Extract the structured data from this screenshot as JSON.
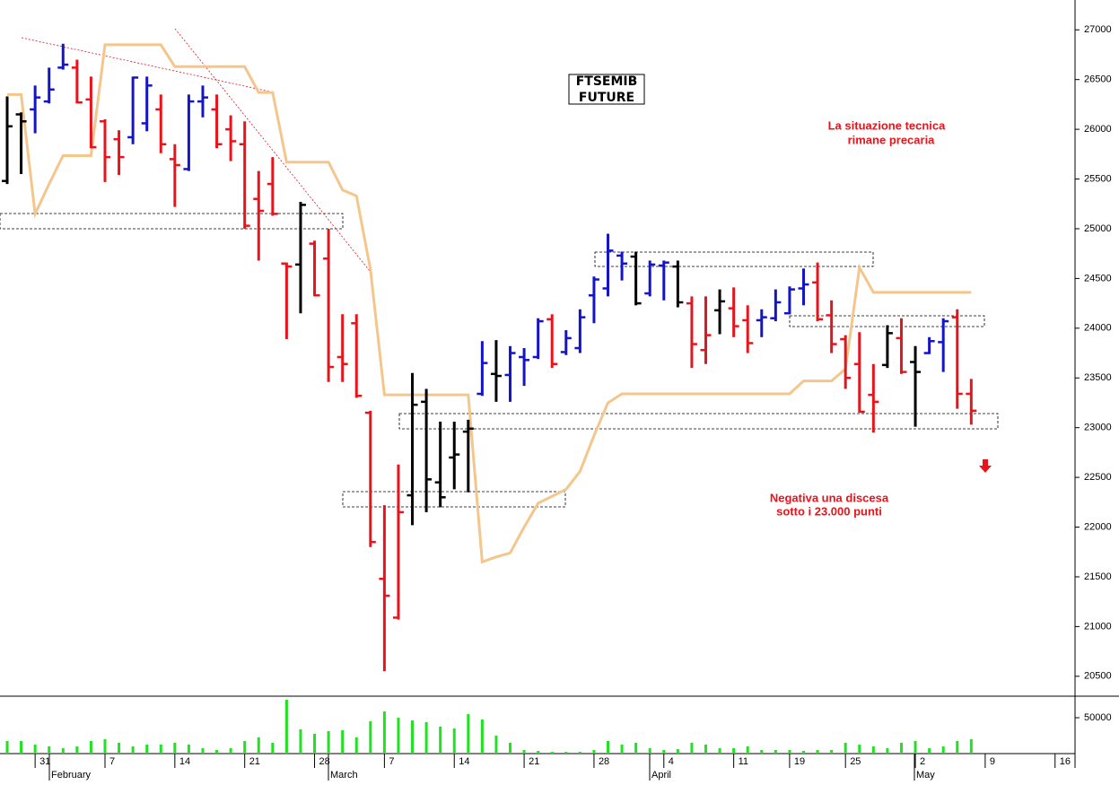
{
  "chart_data": {
    "type": "ohlc",
    "title": [
      "FTSEMIB",
      "FUTURE"
    ],
    "annotations": [
      {
        "lines": [
          "La situazione tecnica",
          "rimane precaria"
        ]
      },
      {
        "lines": [
          "Negativa una discesa",
          "sotto i 23.000 punti"
        ]
      }
    ],
    "months": [
      "February",
      "March",
      "April",
      "May"
    ],
    "categories": [
      null,
      null,
      "31",
      null,
      null,
      null,
      null,
      "7",
      null,
      null,
      null,
      null,
      "14",
      null,
      null,
      null,
      null,
      "21",
      null,
      null,
      null,
      null,
      "28",
      null,
      null,
      null,
      null,
      "7",
      null,
      null,
      null,
      null,
      "14",
      null,
      null,
      null,
      null,
      "21",
      null,
      null,
      null,
      null,
      "28",
      null,
      null,
      null,
      null,
      "4",
      null,
      null,
      null,
      null,
      "11",
      null,
      null,
      null,
      "19",
      null,
      null,
      null,
      "25",
      null,
      null,
      null,
      null,
      "2",
      null,
      null,
      null,
      null,
      "9",
      null,
      null,
      null,
      null,
      "16"
    ],
    "open": [
      25480,
      26150,
      26200,
      26280,
      26620,
      26620,
      26300,
      26080,
      25900,
      25920,
      26060,
      26200,
      25700,
      25600,
      26280,
      26200,
      26000,
      25850,
      25300,
      25450,
      24650,
      24640,
      24850,
      24700,
      23710,
      24050,
      23150,
      21480,
      21090,
      22320,
      23260,
      22450,
      22700,
      22960,
      23340,
      23540,
      23530,
      23710,
      23710,
      24090,
      23760,
      23800,
      24330,
      24400,
      24730,
      24720,
      24350,
      24630,
      24620,
      24250,
      23780,
      24180,
      24200,
      24080,
      24080,
      24100,
      24150,
      24400,
      24460,
      24130,
      23890,
      23640,
      23330,
      23630,
      23900,
      23660,
      23750,
      23860,
      24110,
      23340,
      null,
      null,
      null,
      null,
      null,
      null
    ],
    "high": [
      26330,
      26170,
      26440,
      26620,
      26860,
      26700,
      26530,
      26100,
      25990,
      26530,
      26530,
      26350,
      25850,
      26350,
      26440,
      26350,
      26140,
      26080,
      25580,
      25720,
      24660,
      25270,
      24880,
      25000,
      24140,
      24140,
      23170,
      22220,
      22630,
      23550,
      23390,
      23060,
      23060,
      23080,
      23870,
      23880,
      23820,
      23800,
      24100,
      24140,
      23980,
      24190,
      24520,
      24950,
      24770,
      24770,
      24680,
      24680,
      24680,
      24320,
      24320,
      24390,
      24410,
      24230,
      24190,
      24390,
      24420,
      24600,
      24660,
      24280,
      23930,
      23960,
      23640,
      24030,
      24100,
      23820,
      23910,
      24100,
      24190,
      23490,
      null,
      null,
      null,
      null,
      null,
      null
    ],
    "low": [
      25450,
      25550,
      25960,
      26260,
      26600,
      26260,
      25810,
      25470,
      25540,
      25850,
      25980,
      25760,
      25220,
      25580,
      26120,
      25810,
      25680,
      25000,
      24680,
      25130,
      23890,
      24150,
      24320,
      23460,
      23460,
      23300,
      21800,
      20550,
      21070,
      22020,
      22150,
      22200,
      22380,
      22350,
      23320,
      23260,
      23260,
      23420,
      23690,
      23600,
      23730,
      23750,
      24050,
      24320,
      24480,
      24230,
      24320,
      24280,
      24210,
      23600,
      23640,
      23940,
      23910,
      23750,
      23910,
      24070,
      24140,
      24230,
      24070,
      23750,
      23390,
      23150,
      22950,
      23600,
      23540,
      23010,
      23740,
      23560,
      23190,
      23030,
      null,
      null,
      null,
      null,
      null,
      null
    ],
    "close": [
      26030,
      26080,
      26320,
      26400,
      26650,
      26270,
      25820,
      25720,
      25720,
      26520,
      26440,
      25850,
      25640,
      26280,
      26320,
      25850,
      25880,
      25030,
      25180,
      25150,
      24620,
      25240,
      24330,
      23610,
      23640,
      23320,
      21850,
      21310,
      22150,
      23230,
      22480,
      22300,
      22730,
      22990,
      23650,
      23520,
      23750,
      23680,
      24070,
      23640,
      23900,
      24110,
      24490,
      24780,
      24650,
      24250,
      24640,
      24660,
      24260,
      23840,
      23930,
      24270,
      24020,
      23850,
      24110,
      24260,
      24390,
      24440,
      24090,
      23840,
      23500,
      23160,
      23260,
      23950,
      23560,
      23560,
      23870,
      24070,
      23340,
      23170,
      null,
      null,
      null,
      null,
      null,
      null
    ],
    "colors": [
      "#000000",
      "#000000",
      "#1414c8",
      "#1414c8",
      "#1414c8",
      "#e8141c",
      "#e8141c",
      "#e8141c",
      "#e8141c",
      "#1414c8",
      "#1414c8",
      "#e8141c",
      "#e8141c",
      "#1414c8",
      "#1414c8",
      "#e8141c",
      "#e8141c",
      "#e8141c",
      "#e8141c",
      "#e8141c",
      "#e8141c",
      "#000000",
      "#e8141c",
      "#e8141c",
      "#e8141c",
      "#e8141c",
      "#e8141c",
      "#e8141c",
      "#e8141c",
      "#000000",
      "#000000",
      "#000000",
      "#000000",
      "#000000",
      "#1414c8",
      "#000000",
      "#1414c8",
      "#1414c8",
      "#1414c8",
      "#e8141c",
      "#1414c8",
      "#1414c8",
      "#1414c8",
      "#1414c8",
      "#1414c8",
      "#000000",
      "#1414c8",
      "#1414c8",
      "#000000",
      "#e8141c",
      "#e8141c",
      "#000000",
      "#e8141c",
      "#e8141c",
      "#1414c8",
      "#1414c8",
      "#1414c8",
      "#1414c8",
      "#e8141c",
      "#e8141c",
      "#e8141c",
      "#e8141c",
      "#e8141c",
      "#000000",
      "#e8141c",
      "#000000",
      "#1414c8",
      "#1414c8",
      "#e8141c",
      "#e8141c",
      null,
      null,
      null,
      null,
      null,
      null
    ],
    "line": {
      "color": "#f5c68c",
      "values": [
        26350,
        26350,
        25150,
        25450,
        25735,
        25735,
        25735,
        26850,
        26850,
        26850,
        26850,
        26850,
        26630,
        26630,
        26630,
        26630,
        26630,
        26630,
        26370,
        26370,
        25670,
        25670,
        25670,
        25670,
        25390,
        25330,
        24590,
        23330,
        23330,
        23330,
        23330,
        23330,
        23330,
        23330,
        21650,
        21700,
        21740,
        22000,
        22240,
        22310,
        22380,
        22560,
        22920,
        23250,
        23340,
        23340,
        23340,
        23340,
        23340,
        23340,
        23340,
        23340,
        23340,
        23340,
        23340,
        23340,
        23340,
        23470,
        23470,
        23470,
        23590,
        24610,
        24360,
        24360,
        24360,
        24360,
        24360,
        24360,
        24360,
        24360,
        null,
        null,
        null,
        null,
        null,
        null
      ]
    },
    "volume": {
      "color": "#22e022",
      "ylim": [
        0,
        80000
      ],
      "yticks": [
        50000
      ],
      "values": [
        17500,
        17500,
        12500,
        10000,
        7500,
        10000,
        17500,
        20000,
        15000,
        10000,
        12500,
        12500,
        15000,
        12500,
        7500,
        5000,
        7500,
        17500,
        22500,
        15000,
        75000,
        33750,
        27500,
        31250,
        32500,
        22500,
        45000,
        58750,
        50000,
        46250,
        43750,
        37500,
        35000,
        55000,
        47500,
        25000,
        15000,
        5000,
        3750,
        2500,
        2500,
        2500,
        5000,
        17500,
        12500,
        15000,
        7500,
        5000,
        6250,
        15000,
        12500,
        7500,
        7500,
        10000,
        5000,
        5000,
        5000,
        3750,
        5000,
        5000,
        15000,
        12500,
        10000,
        7500,
        15000,
        17500,
        7500,
        10000,
        17500,
        20000,
        null,
        null,
        null,
        null,
        null,
        null
      ]
    },
    "ylim": [
      20300,
      27300
    ],
    "yticks": [
      20500,
      21000,
      21500,
      22000,
      22500,
      23000,
      23500,
      24000,
      24500,
      25000,
      25500,
      26000,
      26500,
      27000
    ]
  }
}
